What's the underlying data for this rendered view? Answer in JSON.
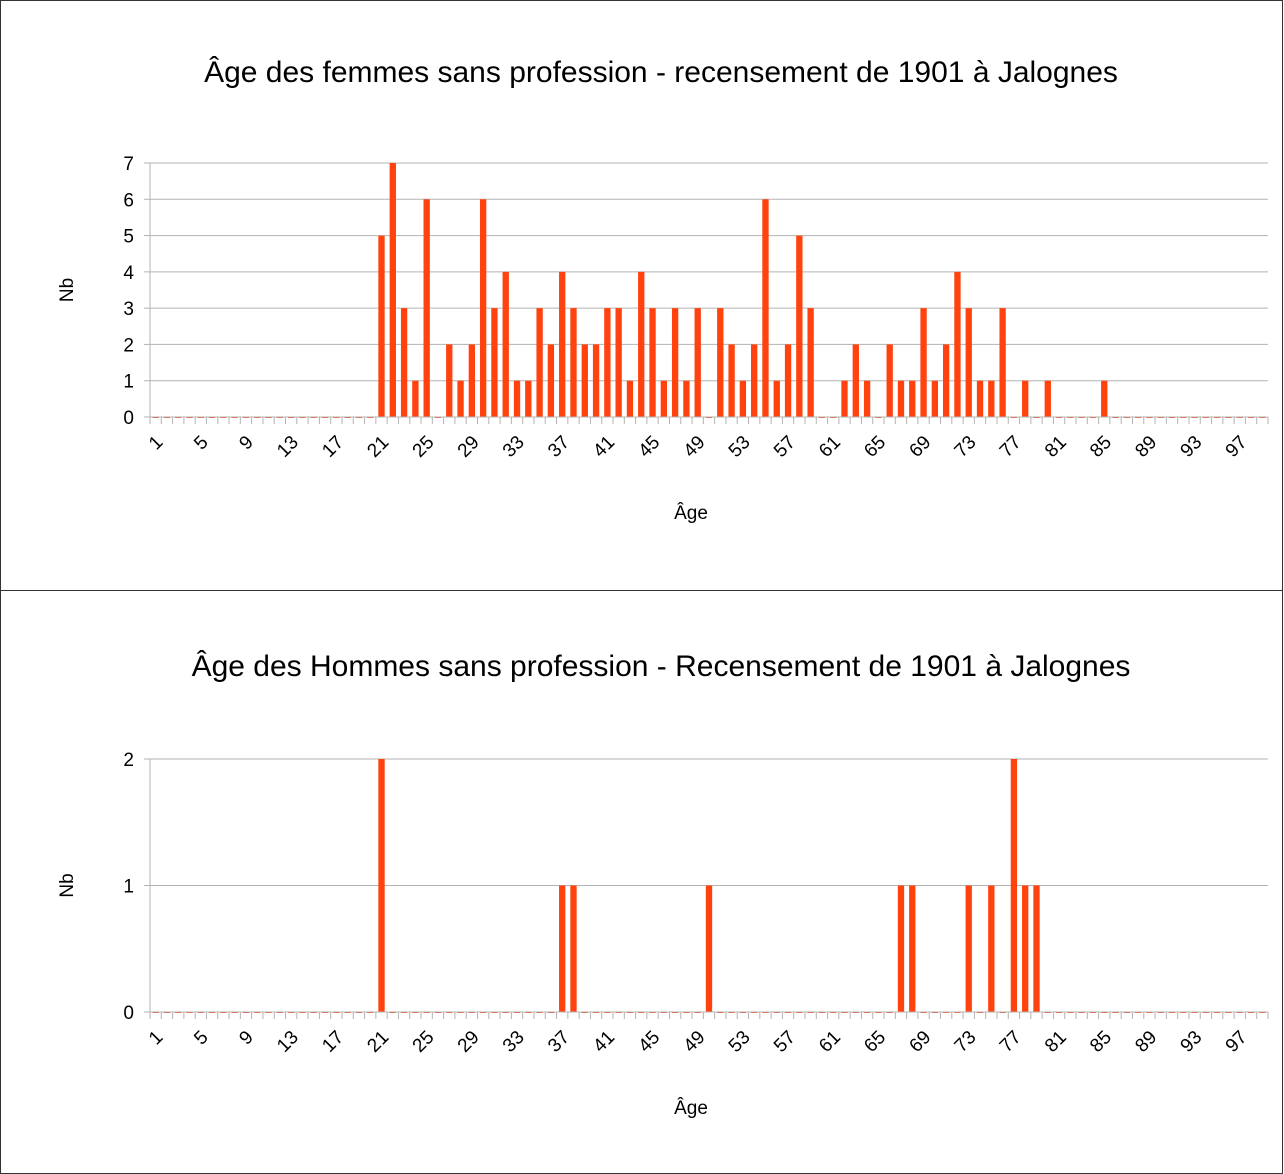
{
  "chart_data": [
    {
      "type": "bar",
      "title": "Âge des femmes sans profession - recensement de 1901 à Jalognes",
      "x_label": "Âge",
      "y_label": "Nb",
      "color": "#ff420e",
      "grid": true,
      "categories": [
        1,
        null,
        null,
        null,
        5,
        null,
        null,
        null,
        9,
        null,
        null,
        null,
        13,
        null,
        null,
        null,
        17,
        null,
        null,
        null,
        21,
        null,
        null,
        null,
        25,
        null,
        null,
        null,
        29,
        null,
        null,
        null,
        33,
        null,
        null,
        null,
        37,
        null,
        null,
        null,
        41,
        null,
        null,
        null,
        45,
        null,
        null,
        null,
        49,
        null,
        null,
        null,
        53,
        null,
        null,
        null,
        57,
        null,
        null,
        null,
        61,
        null,
        null,
        null,
        65,
        null,
        null,
        null,
        69,
        null,
        null,
        null,
        73,
        null,
        null,
        null,
        77,
        null,
        null,
        null,
        81,
        null,
        null,
        null,
        85,
        null,
        null,
        null,
        89,
        null,
        null,
        null,
        93,
        null,
        null,
        null,
        97,
        null,
        null
      ],
      "values": [
        0,
        0,
        0,
        0,
        0,
        0,
        0,
        0,
        0,
        0,
        0,
        0,
        0,
        0,
        0,
        0,
        0,
        0,
        0,
        0,
        5,
        7,
        3,
        1,
        6,
        0,
        2,
        1,
        2,
        6,
        3,
        4,
        1,
        1,
        3,
        2,
        4,
        3,
        2,
        2,
        3,
        3,
        1,
        4,
        3,
        1,
        3,
        1,
        3,
        0,
        3,
        2,
        1,
        2,
        6,
        1,
        2,
        5,
        3,
        0,
        0,
        1,
        2,
        1,
        0,
        2,
        1,
        1,
        3,
        1,
        2,
        4,
        3,
        1,
        1,
        3,
        0,
        1,
        0,
        1,
        0,
        0,
        0,
        0,
        1,
        0,
        0,
        0,
        0,
        0,
        0,
        0,
        0,
        0,
        0,
        0,
        0,
        0,
        0
      ],
      "ylim": [
        0,
        7
      ],
      "yticks": [
        0,
        1,
        2,
        3,
        4,
        5,
        6,
        7
      ]
    },
    {
      "type": "bar",
      "title": "Âge des Hommes sans profession - Recensement de 1901 à Jalognes",
      "x_label": "Âge",
      "y_label": "Nb",
      "color": "#ff420e",
      "grid": true,
      "categories": [
        1,
        null,
        null,
        null,
        5,
        null,
        null,
        null,
        9,
        null,
        null,
        null,
        13,
        null,
        null,
        null,
        17,
        null,
        null,
        null,
        21,
        null,
        null,
        null,
        25,
        null,
        null,
        null,
        29,
        null,
        null,
        null,
        33,
        null,
        null,
        null,
        37,
        null,
        null,
        null,
        41,
        null,
        null,
        null,
        45,
        null,
        null,
        null,
        49,
        null,
        null,
        null,
        53,
        null,
        null,
        null,
        57,
        null,
        null,
        null,
        61,
        null,
        null,
        null,
        65,
        null,
        null,
        null,
        69,
        null,
        null,
        null,
        73,
        null,
        null,
        null,
        77,
        null,
        null,
        null,
        81,
        null,
        null,
        null,
        85,
        null,
        null,
        null,
        89,
        null,
        null,
        null,
        93,
        null,
        null,
        null,
        97,
        null,
        null
      ],
      "values": [
        0,
        0,
        0,
        0,
        0,
        0,
        0,
        0,
        0,
        0,
        0,
        0,
        0,
        0,
        0,
        0,
        0,
        0,
        0,
        0,
        2,
        0,
        0,
        0,
        0,
        0,
        0,
        0,
        0,
        0,
        0,
        0,
        0,
        0,
        0,
        0,
        1,
        1,
        0,
        0,
        0,
        0,
        0,
        0,
        0,
        0,
        0,
        0,
        0,
        1,
        0,
        0,
        0,
        0,
        0,
        0,
        0,
        0,
        0,
        0,
        0,
        0,
        0,
        0,
        0,
        0,
        1,
        1,
        0,
        0,
        0,
        0,
        1,
        0,
        1,
        0,
        2,
        1,
        1,
        0,
        0,
        0,
        0,
        0,
        0,
        0,
        0,
        0,
        0,
        0,
        0,
        0,
        0,
        0,
        0,
        0,
        0,
        0,
        0
      ],
      "ylim": [
        0,
        2
      ],
      "yticks": [
        0,
        1,
        2
      ]
    }
  ]
}
